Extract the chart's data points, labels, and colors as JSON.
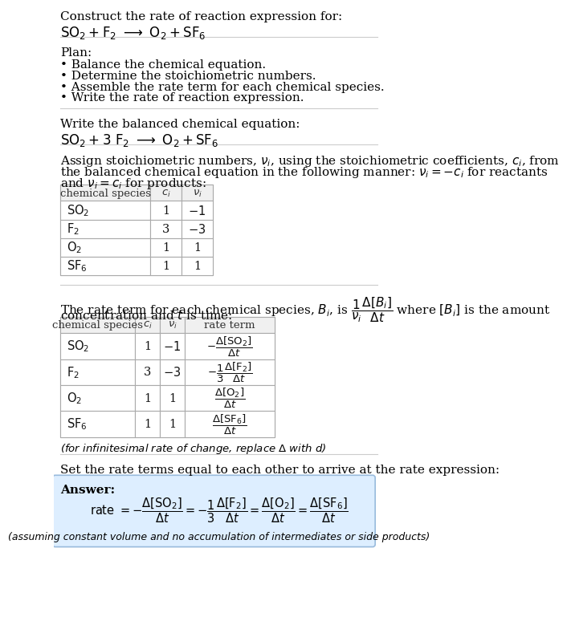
{
  "bg_color": "#ffffff",
  "text_color": "#000000",
  "title_line1": "Construct the rate of reaction expression for:",
  "plan_header": "Plan:",
  "plan_items": [
    "• Balance the chemical equation.",
    "• Determine the stoichiometric numbers.",
    "• Assemble the rate term for each chemical species.",
    "• Write the rate of reaction expression."
  ],
  "balanced_header": "Write the balanced chemical equation:",
  "stoich_intro_line1": "Assign stoichiometric numbers, $\\nu_i$, using the stoichiometric coefficients, $c_i$, from",
  "stoich_intro_line2": "the balanced chemical equation in the following manner: $\\nu_i = -c_i$ for reactants",
  "stoich_intro_line3": "and $\\nu_i = c_i$ for products:",
  "table1_rows": [
    [
      "$\\mathrm{SO_2}$",
      "1",
      "$-1$"
    ],
    [
      "$\\mathrm{F_2}$",
      "3",
      "$-3$"
    ],
    [
      "$\\mathrm{O_2}$",
      "1",
      "1"
    ],
    [
      "$\\mathrm{SF_6}$",
      "1",
      "1"
    ]
  ],
  "rate_line1": "The rate term for each chemical species, $B_i$, is $\\dfrac{1}{\\nu_i}\\dfrac{\\Delta[B_i]}{\\Delta t}$ where $[B_i]$ is the amount",
  "rate_line2": "concentration and $t$ is time:",
  "table2_rows": [
    [
      "$\\mathrm{SO_2}$",
      "1",
      "$-1$",
      "$-\\dfrac{\\Delta[\\mathrm{SO_2}]}{\\Delta t}$"
    ],
    [
      "$\\mathrm{F_2}$",
      "3",
      "$-3$",
      "$-\\dfrac{1}{3}\\dfrac{\\Delta[\\mathrm{F_2}]}{\\Delta t}$"
    ],
    [
      "$\\mathrm{O_2}$",
      "1",
      "1",
      "$\\dfrac{\\Delta[\\mathrm{O_2}]}{\\Delta t}$"
    ],
    [
      "$\\mathrm{SF_6}$",
      "1",
      "1",
      "$\\dfrac{\\Delta[\\mathrm{SF_6}]}{\\Delta t}$"
    ]
  ],
  "infinitesimal_note": "(for infinitesimal rate of change, replace $\\Delta$ with $d$)",
  "set_equal_text": "Set the rate terms equal to each other to arrive at the rate expression:",
  "answer_bg": "#ddeeff",
  "answer_border": "#99bbdd",
  "answer_label": "Answer:",
  "rate_expr": "rate $= -\\dfrac{\\Delta[\\mathrm{SO_2}]}{\\Delta t} = -\\dfrac{1}{3}\\dfrac{\\Delta[\\mathrm{F_2}]}{\\Delta t} = \\dfrac{\\Delta[\\mathrm{O_2}]}{\\Delta t} = \\dfrac{\\Delta[\\mathrm{SF_6}]}{\\Delta t}$",
  "footnote": "(assuming constant volume and no accumulation of intermediates or side products)",
  "sep_color": "#cccccc",
  "table_border": "#aaaaaa",
  "table_header_bg": "#f0f0f0",
  "table_cell_bg": "#ffffff"
}
